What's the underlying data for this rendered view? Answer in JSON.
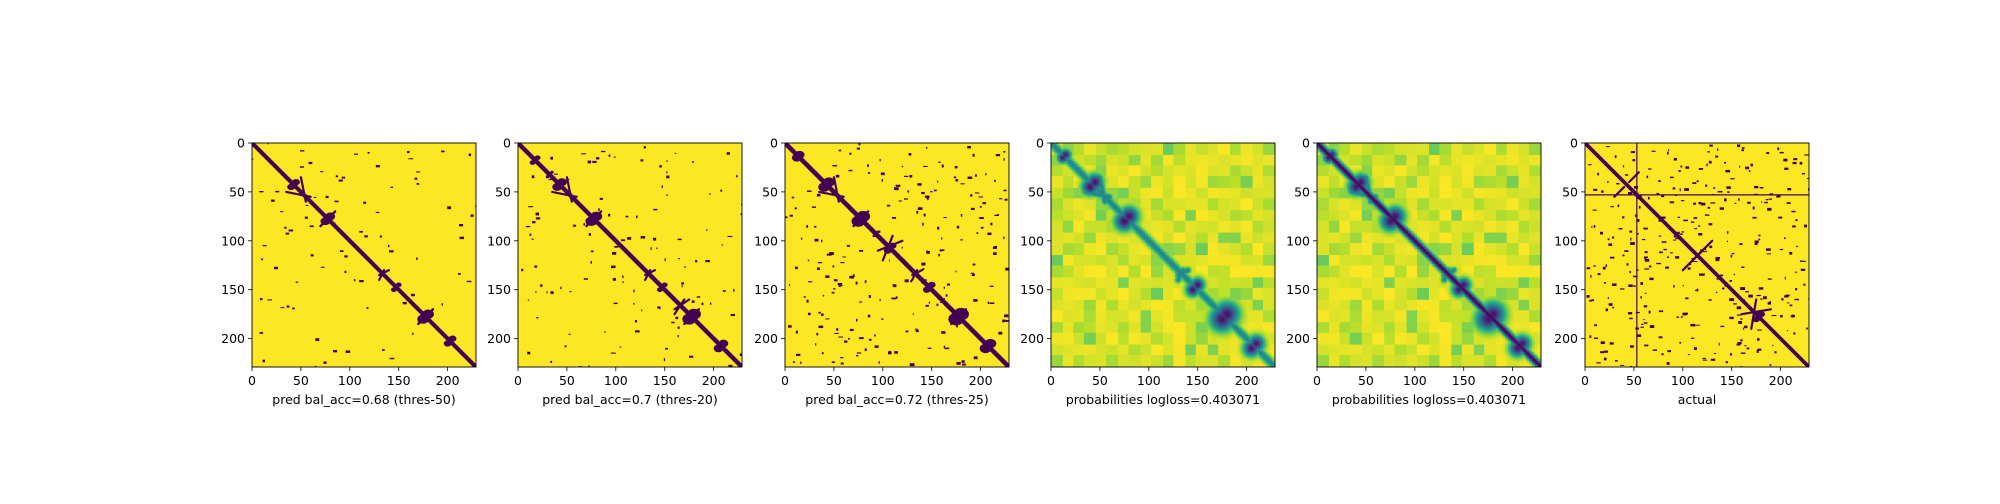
{
  "colors": {
    "background_yellow": "#fde725",
    "contact_purple": "#440154",
    "mid_teal": "#21918c",
    "light_green": "#5ec962",
    "pale_green": "#b5de2b"
  },
  "chart_data": [
    {
      "type": "heatmap",
      "xlabel": "pred bal_acc=0.68 (thres-50)",
      "xticks": [
        "0",
        "50",
        "100",
        "150",
        "200"
      ],
      "yticks": [
        "0",
        "50",
        "100",
        "150",
        "200"
      ],
      "xlim": [
        0,
        229
      ],
      "ylim": [
        229,
        0
      ],
      "colormap": "viridis",
      "style": "binary",
      "diagonal_width": 2.2,
      "blobs": [
        [
          45,
          40,
          4
        ],
        [
          80,
          75,
          5
        ],
        [
          180,
          175,
          6
        ],
        [
          200,
          205,
          4
        ],
        [
          150,
          145,
          3
        ]
      ],
      "streaks": [
        [
          35,
          50,
          60,
          55,
          1
        ],
        [
          70,
          85,
          85,
          70,
          1
        ],
        [
          130,
          135,
          140,
          130,
          1
        ],
        [
          170,
          185,
          185,
          170,
          1
        ]
      ],
      "noise_count": 40,
      "seed": 11
    },
    {
      "type": "heatmap",
      "xlabel": "pred bal_acc=0.7 (thres-20)",
      "xticks": [
        "0",
        "50",
        "100",
        "150",
        "200"
      ],
      "yticks": [
        "0",
        "50",
        "100",
        "150",
        "200"
      ],
      "xlim": [
        0,
        229
      ],
      "ylim": [
        229,
        0
      ],
      "colormap": "viridis",
      "style": "binary",
      "diagonal_width": 2.4,
      "blobs": [
        [
          45,
          40,
          5
        ],
        [
          80,
          75,
          6
        ],
        [
          180,
          175,
          7
        ],
        [
          205,
          210,
          5
        ],
        [
          150,
          145,
          3
        ],
        [
          20,
          15,
          3
        ]
      ],
      "streaks": [
        [
          35,
          50,
          60,
          55,
          1
        ],
        [
          70,
          85,
          85,
          70,
          1
        ],
        [
          130,
          135,
          140,
          130,
          1
        ],
        [
          170,
          185,
          185,
          170,
          1
        ],
        [
          160,
          170,
          175,
          160,
          1
        ]
      ],
      "noise_count": 60,
      "seed": 23
    },
    {
      "type": "heatmap",
      "xlabel": "pred bal_acc=0.72 (thres-25)",
      "xticks": [
        "0",
        "50",
        "100",
        "150",
        "200"
      ],
      "yticks": [
        "0",
        "50",
        "100",
        "150",
        "200"
      ],
      "xlim": [
        0,
        229
      ],
      "ylim": [
        229,
        0
      ],
      "colormap": "viridis",
      "style": "binary",
      "diagonal_width": 2.6,
      "blobs": [
        [
          45,
          40,
          6
        ],
        [
          80,
          75,
          7
        ],
        [
          180,
          175,
          8
        ],
        [
          205,
          210,
          6
        ],
        [
          150,
          145,
          4
        ],
        [
          15,
          12,
          5
        ],
        [
          110,
          105,
          4
        ]
      ],
      "streaks": [
        [
          35,
          50,
          60,
          55,
          1
        ],
        [
          70,
          85,
          85,
          70,
          1
        ],
        [
          130,
          135,
          140,
          130,
          1
        ],
        [
          170,
          185,
          185,
          170,
          1
        ],
        [
          100,
          120,
          110,
          95,
          1
        ]
      ],
      "noise_count": 110,
      "seed": 37
    },
    {
      "type": "heatmap",
      "xlabel": "probabilities logloss=0.403071",
      "xticks": [
        "0",
        "50",
        "100",
        "150",
        "200"
      ],
      "yticks": [
        "0",
        "50",
        "100",
        "150",
        "200"
      ],
      "xlim": [
        0,
        229
      ],
      "ylim": [
        229,
        0
      ],
      "colormap": "viridis",
      "style": "continuous",
      "diagonal_width": 1.0,
      "blobs": [
        [
          45,
          40,
          6
        ],
        [
          80,
          75,
          7
        ],
        [
          180,
          175,
          9
        ],
        [
          205,
          210,
          6
        ],
        [
          150,
          145,
          5
        ],
        [
          15,
          12,
          4
        ]
      ],
      "streaks": [
        [
          35,
          50,
          60,
          55,
          1
        ],
        [
          70,
          85,
          85,
          70,
          1
        ],
        [
          130,
          135,
          140,
          130,
          1
        ],
        [
          170,
          185,
          185,
          170,
          1
        ]
      ],
      "noise_count": 0,
      "seed": 51
    },
    {
      "type": "heatmap",
      "xlabel": "probabilities logloss=0.403071",
      "xticks": [
        "0",
        "50",
        "100",
        "150",
        "200"
      ],
      "yticks": [
        "0",
        "50",
        "100",
        "150",
        "200"
      ],
      "xlim": [
        0,
        229
      ],
      "ylim": [
        229,
        0
      ],
      "colormap": "viridis",
      "style": "continuous_dark_diag",
      "diagonal_width": 3.0,
      "blobs": [
        [
          45,
          40,
          6
        ],
        [
          80,
          75,
          7
        ],
        [
          180,
          175,
          9
        ],
        [
          205,
          210,
          6
        ],
        [
          150,
          145,
          5
        ],
        [
          15,
          12,
          4
        ]
      ],
      "streaks": [
        [
          35,
          50,
          60,
          55,
          1
        ],
        [
          70,
          85,
          85,
          70,
          1
        ],
        [
          130,
          135,
          140,
          130,
          1
        ],
        [
          170,
          185,
          185,
          170,
          1
        ]
      ],
      "noise_count": 0,
      "seed": 51
    },
    {
      "type": "heatmap",
      "xlabel": "actual",
      "xticks": [
        "0",
        "50",
        "100",
        "150",
        "200"
      ],
      "yticks": [
        "0",
        "50",
        "100",
        "150",
        "200"
      ],
      "xlim": [
        0,
        229
      ],
      "ylim": [
        229,
        0
      ],
      "colormap": "viridis",
      "style": "binary",
      "diagonal_width": 1.8,
      "blobs": [
        [
          55,
          55,
          3
        ],
        [
          180,
          175,
          4
        ]
      ],
      "streaks": [
        [
          30,
          55,
          40,
          45,
          1
        ],
        [
          110,
          120,
          130,
          100,
          1
        ],
        [
          160,
          175,
          190,
          170,
          1
        ]
      ],
      "noise_count": 170,
      "seed": 73,
      "crosshair": 53
    }
  ]
}
